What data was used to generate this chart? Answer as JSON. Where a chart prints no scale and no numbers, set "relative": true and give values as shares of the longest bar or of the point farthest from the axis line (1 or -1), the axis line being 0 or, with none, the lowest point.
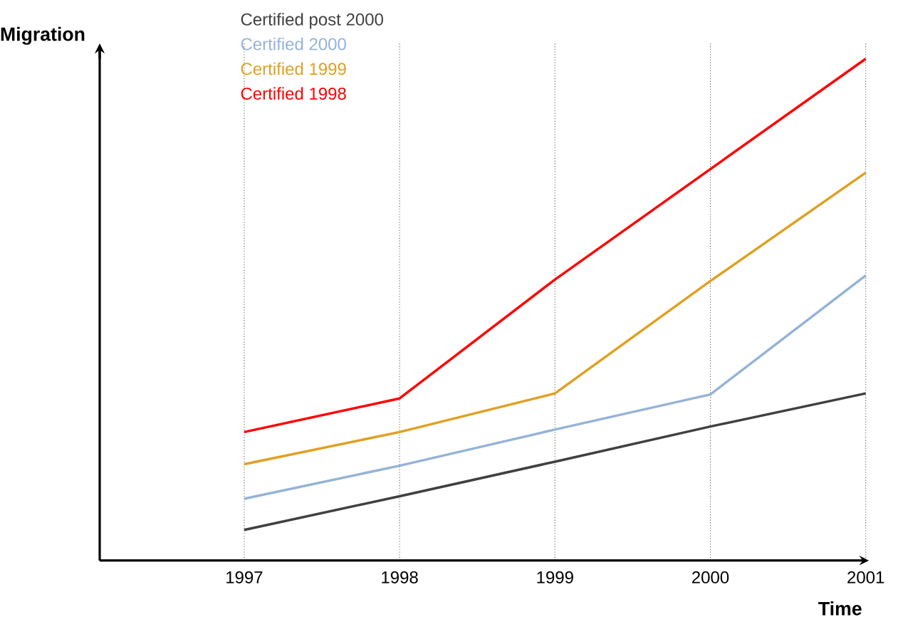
{
  "chart_data": {
    "type": "line",
    "xlabel": "Time",
    "ylabel": "Migration",
    "relative": true,
    "categories": [
      "1997",
      "1998",
      "1999",
      "2000",
      "2001"
    ],
    "series": [
      {
        "name": "Certified post 2000",
        "color": "#404040",
        "values": [
          0.061,
          0.128,
          0.197,
          0.267,
          0.333
        ]
      },
      {
        "name": "Certified 2000",
        "color": "#95b3d7",
        "values": [
          0.123,
          0.189,
          0.261,
          0.331,
          0.568
        ]
      },
      {
        "name": "Certified 1999",
        "color": "#e0a020",
        "values": [
          0.192,
          0.256,
          0.333,
          0.557,
          0.773
        ]
      },
      {
        "name": "Certified 1998",
        "color": "#ff0000",
        "values": [
          0.256,
          0.323,
          0.56,
          0.78,
          1
        ]
      }
    ],
    "grid": "x",
    "legend": "top left",
    "marker": "none",
    "line_style": "solid"
  }
}
